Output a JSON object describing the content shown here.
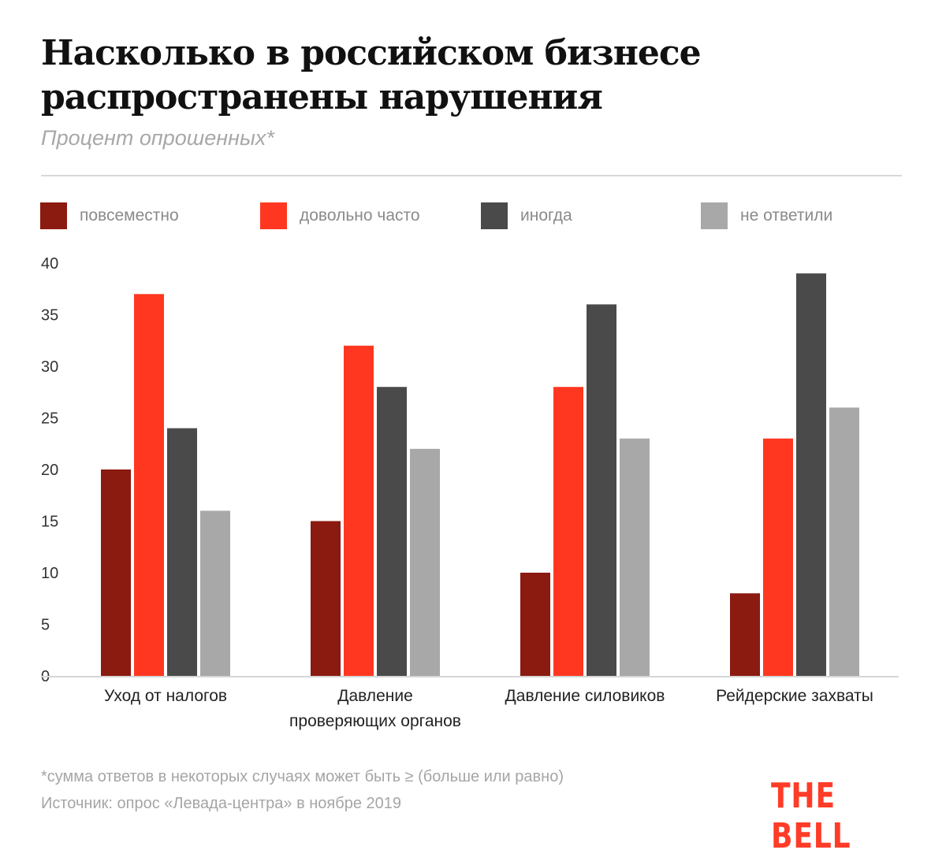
{
  "header": {
    "title_line1": "Насколько в российском бизнесе",
    "title_line2": "распространены нарушения",
    "subtitle": "Процент опрошенных*"
  },
  "legend": [
    {
      "label": "повсеместно",
      "color": "#8b1a10"
    },
    {
      "label": "довольно часто",
      "color": "#ff3720"
    },
    {
      "label": "иногда",
      "color": "#4a4a4a"
    },
    {
      "label": "не ответили",
      "color": "#a8a8a8"
    }
  ],
  "chart_data": {
    "type": "bar",
    "title": "Насколько в российском бизнесе распространены нарушения",
    "subtitle": "Процент опрошенных*",
    "xlabel": "",
    "ylabel": "",
    "ylim": [
      0,
      40
    ],
    "yticks": [
      0,
      5,
      10,
      15,
      20,
      25,
      30,
      35,
      40
    ],
    "grid": false,
    "legend_position": "top",
    "categories": [
      [
        "Уход от налогов"
      ],
      [
        "Давление",
        "проверяющих органов"
      ],
      [
        "Давление силовиков"
      ],
      [
        "Рейдерские захваты"
      ]
    ],
    "series": [
      {
        "name": "повсеместно",
        "color": "#8b1a10",
        "values": [
          20,
          15,
          10,
          8
        ]
      },
      {
        "name": "довольно часто",
        "color": "#ff3720",
        "values": [
          37,
          32,
          28,
          23
        ]
      },
      {
        "name": "иногда",
        "color": "#4a4a4a",
        "values": [
          24,
          28,
          36,
          39
        ]
      },
      {
        "name": "не ответили",
        "color": "#a8a8a8",
        "values": [
          16,
          22,
          23,
          26
        ]
      }
    ]
  },
  "footer": {
    "note": "*сумма ответов в некоторых случаях может быть ≥ (больше или равно)",
    "source": "Источник: опрос «Левада-центра» в ноябре 2019",
    "logo": "THE BELL"
  }
}
